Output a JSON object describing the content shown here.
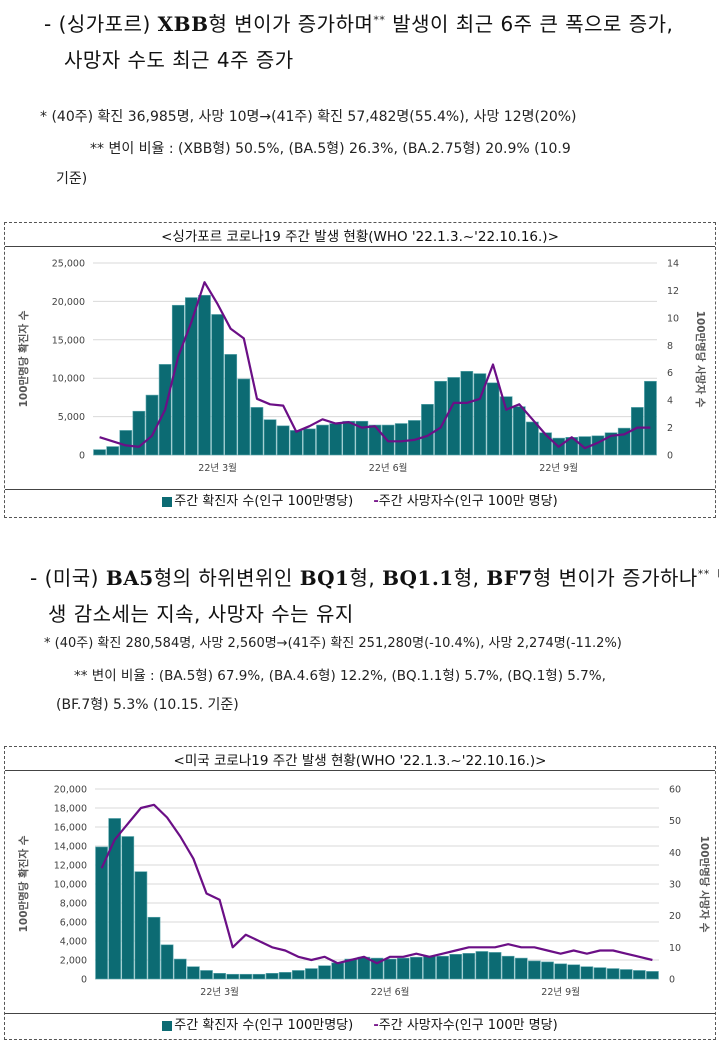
{
  "singapore": {
    "heading_line1_pre": "- (싱가포르) ",
    "heading_line1_bold": "XBB",
    "heading_line1_post": "형 변이가 증가하며",
    "heading_line1_sup": "**",
    "heading_line1_tail": " 발생이 최근 6주 큰 폭으로 증가,",
    "heading_line2": "사망자 수도 최근 4주 증가",
    "note1": "* (40주) 확진 36,985명, 사망 10명→(41주) 확진 57,482명(55.4%), 사망 12명(20%)",
    "note2": "** 변이 비율 : (XBB형) 50.5%, (BA.5형) 26.3%, (BA.2.75형) 20.9% (10.9",
    "note3": "기준)",
    "chart_title": "<싱가포르 코로나19 주간 발생 현황(WHO '22.1.3.~'22.10.16.)>",
    "legend_cases": "주간 확진자 수(인구 100만명당)",
    "legend_deaths": "주간 사망자수(인구 100만 명당)"
  },
  "usa": {
    "heading_line1_pre": "- (미국) ",
    "heading_line1_bold": "BA5",
    "heading_line1_mid": "형의 하위변위인 ",
    "heading_line1_bold2": "BQ1",
    "heading_line1_mid2": "형, ",
    "heading_line1_bold3": "BQ1.1",
    "heading_line1_mid3": "형, ",
    "heading_line1_bold4": "BF7",
    "heading_line1_post": "형 변이가 증가하나",
    "heading_line1_sup": "**",
    "heading_line1_tail": " 발",
    "heading_line2": "생 감소세는 지속, 사망자 수는 유지",
    "note1": "* (40주) 확진 280,584명, 사망 2,560명→(41주) 확진 251,280명(-10.4%), 사망 2,274명(-11.2%)",
    "note2": "** 변이 비율 : (BA.5형) 67.9%, (BA.4.6형) 12.2%, (BQ.1.1형) 5.7%, (BQ.1형) 5.7%,",
    "note3": "(BF.7형) 5.3% (10.15. 기준)",
    "chart_title": "<미국 코로나19 주간 발생 현황(WHO '22.1.3.~'22.10.16.)>",
    "legend_cases": "주간 확진자 수(인구 100만명당)",
    "legend_deaths": "주간 사망자수(인구 100만 명당)"
  },
  "colors": {
    "bar": "#0c6b73",
    "line": "#6b0f86"
  },
  "chart_data": [
    {
      "type": "bar+line",
      "name": "singapore",
      "xlabel_ticks": [
        "22년 3월",
        "22년 6월",
        "22년 9월"
      ],
      "ylabel": "100만명당 확진자 수",
      "y2label": "100만명당 사망자 수",
      "ylim": [
        0,
        25000
      ],
      "yticks": [
        "0",
        "5,000",
        "10,000",
        "15,000",
        "20,000",
        "25,000"
      ],
      "y2lim": [
        0,
        14
      ],
      "y2ticks": [
        "0",
        "2",
        "4",
        "6",
        "8",
        "10",
        "12",
        "14"
      ],
      "series": [
        {
          "name": "주간 확진자 수(인구 100만명당)",
          "kind": "bar",
          "values": [
            700,
            1100,
            3200,
            5700,
            7800,
            11800,
            19500,
            20500,
            20800,
            18300,
            13100,
            9900,
            6200,
            4600,
            3800,
            3200,
            3400,
            3900,
            4100,
            4400,
            4400,
            3900,
            3900,
            4100,
            4500,
            6600,
            9600,
            10100,
            10900,
            10600,
            9400,
            7600,
            6300,
            4300,
            2900,
            2200,
            2300,
            2400,
            2500,
            2900,
            3500,
            6200,
            9600
          ]
        },
        {
          "name": "주간 사망자수(인구 100만 명당)",
          "kind": "line",
          "axis": "y2",
          "values": [
            1.3,
            1.0,
            0.7,
            0.6,
            1.4,
            3.3,
            7.2,
            9.7,
            12.6,
            11.0,
            9.2,
            8.5,
            4.1,
            3.7,
            3.6,
            1.7,
            2.1,
            2.6,
            2.3,
            2.4,
            2.0,
            2.1,
            1.0,
            1.0,
            1.1,
            1.4,
            2.0,
            3.8,
            3.8,
            4.1,
            6.6,
            3.3,
            3.7,
            2.6,
            1.5,
            0.6,
            1.3,
            0.5,
            0.9,
            1.4,
            1.5,
            2.0,
            2.0
          ]
        }
      ]
    },
    {
      "type": "bar+line",
      "name": "usa",
      "xlabel_ticks": [
        "22년 3월",
        "22년 6월",
        "22년 9월"
      ],
      "ylabel": "100만명당 확진자 수",
      "y2label": "100만명당 사망자 수",
      "ylim": [
        0,
        20000
      ],
      "yticks": [
        "0",
        "2,000",
        "4,000",
        "6,000",
        "8,000",
        "10,000",
        "12,000",
        "14,000",
        "16,000",
        "18,000",
        "20,000"
      ],
      "y2lim": [
        0,
        60
      ],
      "y2ticks": [
        "0",
        "10",
        "20",
        "30",
        "40",
        "50",
        "60"
      ],
      "series": [
        {
          "name": "주간 확진자 수(인구 100만명당)",
          "kind": "bar",
          "values": [
            13900,
            16900,
            15000,
            11300,
            6500,
            3600,
            2100,
            1300,
            900,
            600,
            500,
            500,
            500,
            600,
            700,
            900,
            1100,
            1400,
            1700,
            2100,
            2300,
            2200,
            2100,
            2200,
            2300,
            2400,
            2400,
            2600,
            2700,
            2900,
            2800,
            2400,
            2200,
            1900,
            1800,
            1600,
            1500,
            1300,
            1200,
            1100,
            1000,
            900,
            800
          ]
        },
        {
          "name": "주간 사망자수(인구 100만 명당)",
          "kind": "line",
          "axis": "y2",
          "values": [
            35,
            44,
            49,
            54,
            55,
            51,
            45,
            38,
            27,
            25,
            10,
            14,
            12,
            10,
            9,
            7,
            6,
            7,
            5,
            6,
            7,
            5,
            7,
            7,
            8,
            7,
            8,
            9,
            10,
            10,
            10,
            11,
            10,
            10,
            9,
            8,
            9,
            8,
            9,
            9,
            8,
            7,
            6
          ]
        }
      ]
    }
  ]
}
